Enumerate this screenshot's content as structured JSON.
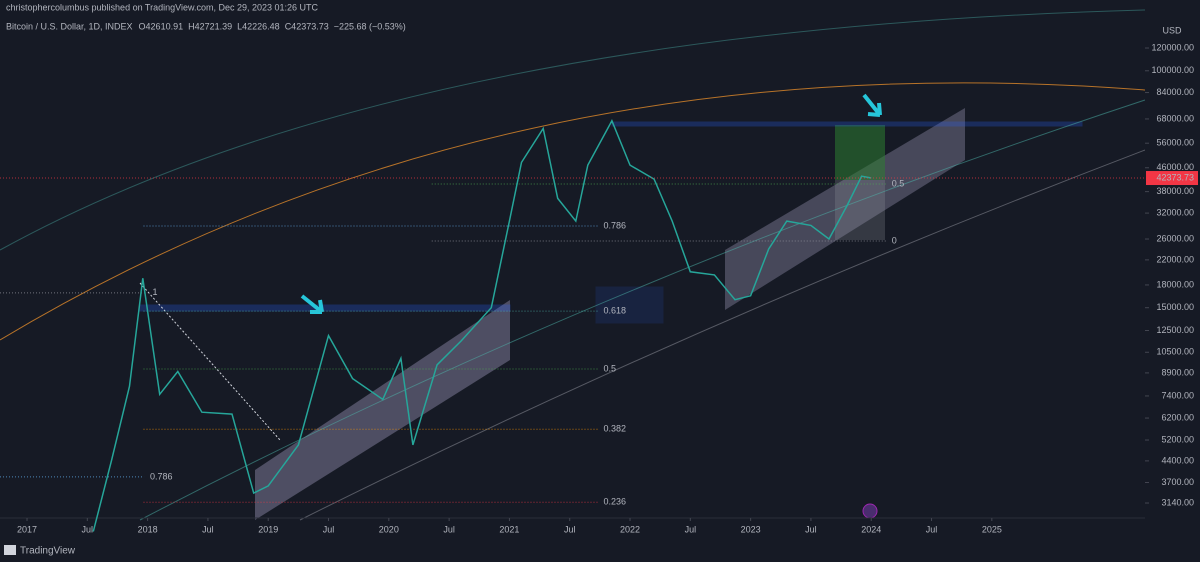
{
  "header": {
    "publisher": "christophercolumbus published on TradingView.com, Dec 29, 2023 01:26 UTC",
    "symbol": "Bitcoin / U.S. Dollar, 1D, INDEX",
    "ohlc": [
      "O42610.91",
      "H42721.39",
      "L42226.48",
      "C42373.73",
      "−225.68 (−0.53%)"
    ]
  },
  "footer": {
    "brand": "TradingView"
  },
  "chart_data": {
    "type": "line",
    "log_scale": true,
    "grid": false,
    "currency": "USD",
    "x": [
      2017.55,
      2017.7,
      2017.85,
      2017.96,
      2018.1,
      2018.25,
      2018.45,
      2018.7,
      2018.88,
      2019.0,
      2019.25,
      2019.5,
      2019.7,
      2019.95,
      2020.1,
      2020.2,
      2020.4,
      2020.6,
      2020.85,
      2021.0,
      2021.1,
      2021.28,
      2021.4,
      2021.55,
      2021.65,
      2021.85,
      2022.0,
      2022.2,
      2022.35,
      2022.5,
      2022.7,
      2022.87,
      2023.0,
      2023.15,
      2023.3,
      2023.5,
      2023.65,
      2023.8,
      2023.92,
      2024.0
    ],
    "series": [
      {
        "name": "Bitcoin / U.S. Dollar",
        "color": "#26a69a",
        "values": [
          2500,
          4400,
          8000,
          19000,
          7500,
          9000,
          6500,
          6400,
          3400,
          3600,
          5000,
          12000,
          8500,
          7200,
          10000,
          5000,
          9500,
          11500,
          15000,
          30000,
          48000,
          63000,
          36000,
          30000,
          47000,
          67000,
          47000,
          42000,
          30000,
          20000,
          19500,
          16000,
          16500,
          24000,
          30000,
          29000,
          26000,
          34000,
          43000,
          42373.73
        ]
      }
    ],
    "last_price": {
      "value": 42373.73,
      "label": "42373.73"
    },
    "xlim": [
      2016.776,
      2026.27
    ],
    "xticks": [
      {
        "value": 2017,
        "label": "2017"
      },
      {
        "value": 2017.5,
        "label": "Jul"
      },
      {
        "value": 2018,
        "label": "2018"
      },
      {
        "value": 2018.5,
        "label": "Jul"
      },
      {
        "value": 2019,
        "label": "2019"
      },
      {
        "value": 2019.5,
        "label": "Jul"
      },
      {
        "value": 2020,
        "label": "2020"
      },
      {
        "value": 2020.5,
        "label": "Jul"
      },
      {
        "value": 2021,
        "label": "2021"
      },
      {
        "value": 2021.5,
        "label": "Jul"
      },
      {
        "value": 2022,
        "label": "2022"
      },
      {
        "value": 2022.5,
        "label": "Jul"
      },
      {
        "value": 2023,
        "label": "2023"
      },
      {
        "value": 2023.5,
        "label": "Jul"
      },
      {
        "value": 2024,
        "label": "2024"
      },
      {
        "value": 2024.5,
        "label": "Jul"
      },
      {
        "value": 2025,
        "label": "2025"
      }
    ],
    "ylim": [
      2785,
      152600
    ],
    "yticks": [
      {
        "value": 120000,
        "label": "120000.00"
      },
      {
        "value": 100000,
        "label": "100000.00"
      },
      {
        "value": 84000,
        "label": "84000.00"
      },
      {
        "value": 68000,
        "label": "68000.00"
      },
      {
        "value": 56000,
        "label": "56000.00"
      },
      {
        "value": 46000,
        "label": "46000.00"
      },
      {
        "value": 38000,
        "label": "38000.00"
      },
      {
        "value": 32000,
        "label": "32000.00"
      },
      {
        "value": 26000,
        "label": "26000.00"
      },
      {
        "value": 22000,
        "label": "22000.00"
      },
      {
        "value": 18000,
        "label": "18000.00"
      },
      {
        "value": 15000,
        "label": "15000.00"
      },
      {
        "value": 12500,
        "label": "12500.00"
      },
      {
        "value": 10500,
        "label": "10500.00"
      },
      {
        "value": 8900,
        "label": "8900.00"
      },
      {
        "value": 7400,
        "label": "7400.00"
      },
      {
        "value": 6200,
        "label": "6200.00"
      },
      {
        "value": 5200,
        "label": "5200.00"
      },
      {
        "value": 4400,
        "label": "4400.00"
      },
      {
        "value": 3700,
        "label": "3700.00"
      },
      {
        "value": 3140,
        "label": "3140.00"
      }
    ],
    "annotations": [
      {
        "text": "0.786",
        "x": 2021.78,
        "y": 28850,
        "color": "#64b5f6"
      },
      {
        "text": "0.618",
        "x": 2021.78,
        "y": 14600,
        "color": "#4db6ac"
      },
      {
        "text": "0.5",
        "x": 2021.78,
        "y": 9180,
        "color": "#4caf50"
      },
      {
        "text": "0.382",
        "x": 2021.78,
        "y": 5670,
        "color": "#ff9800"
      },
      {
        "text": "0.236",
        "x": 2021.78,
        "y": 3160,
        "color": "#f23645"
      },
      {
        "text": "0.786",
        "x": 2018.02,
        "y": 3870,
        "color": "#64b5f6"
      },
      {
        "text": "1",
        "x": 2018.04,
        "y": 16900,
        "color": "#9598a1"
      },
      {
        "text": "0.5",
        "x": 2024.17,
        "y": 40400,
        "color": "#4caf50"
      },
      {
        "text": "0",
        "x": 2024.17,
        "y": 25580,
        "color": "#9598a1"
      }
    ]
  }
}
